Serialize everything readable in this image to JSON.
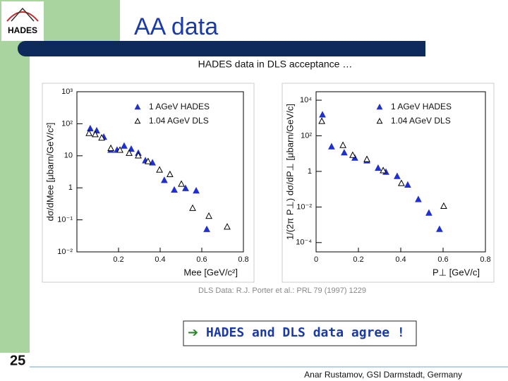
{
  "slide": {
    "logo": "HADES",
    "title": "AA data",
    "subtitle": "HADES data in DLS acceptance …",
    "caption": "DLS Data: R.J. Porter et al.: PRL 79 (1997) 1229",
    "conclusion": "HADES and DLS data agree !",
    "page_number": "25",
    "footer": "Anar Rustamov, GSI Darmstadt, Germany"
  },
  "chart_data": [
    {
      "type": "scatter",
      "x_label": "Mee [GeV/c²]",
      "y_label": "dσ/dMee [μbarn/GeV/c²]",
      "log_y": true,
      "legend": "upper right",
      "xlim": [
        0,
        0.8
      ],
      "xticks": [
        0.2,
        0.4,
        0.6,
        0.8
      ],
      "ylim": [
        0.01,
        1000
      ],
      "yticks": [
        {
          "value": 1000,
          "label": "10³"
        },
        {
          "value": 100,
          "label": "10²"
        },
        10,
        1,
        {
          "value": 0.1,
          "label": "10⁻¹"
        },
        {
          "value": 0.01,
          "label": "10⁻²"
        }
      ],
      "series": [
        {
          "name": "1 AGeV HADES",
          "color": "#2030d0",
          "filled": true,
          "x": [
            0.064,
            0.095,
            0.129,
            0.163,
            0.193,
            0.227,
            0.261,
            0.295,
            0.329,
            0.363,
            0.42,
            0.468,
            0.522,
            0.573,
            0.624
          ],
          "values": [
            70,
            60,
            38,
            15,
            15,
            20,
            16,
            12,
            7,
            6,
            1.7,
            0.85,
            0.95,
            0.8,
            0.05
          ]
        },
        {
          "name": "1.04 AGeV DLS",
          "color": "#000000",
          "filled": false,
          "x": [
            0.058,
            0.088,
            0.119,
            0.163,
            0.207,
            0.251,
            0.295,
            0.342,
            0.397,
            0.447,
            0.502,
            0.556,
            0.634,
            0.722
          ],
          "values": [
            50,
            46,
            36,
            17,
            15,
            12,
            10,
            6.6,
            3.6,
            2.6,
            1.3,
            0.23,
            0.13,
            0.06
          ]
        }
      ]
    },
    {
      "type": "scatter",
      "x_label": "P⊥ [GeV/c]",
      "y_label": "1/(2π P⊥) dσ/dP⊥ [μbarn/GeV/c]",
      "log_y": true,
      "legend": "upper right",
      "xlim": [
        0,
        0.8
      ],
      "xticks": [
        0,
        0.2,
        0.4,
        0.6,
        0.8
      ],
      "ylim": [
        3e-05,
        30000
      ],
      "yticks": [
        {
          "value": 10000,
          "label": "10⁴"
        },
        {
          "value": 100,
          "label": "10²"
        },
        1,
        {
          "value": 0.01,
          "label": "10⁻²"
        },
        {
          "value": 0.0001,
          "label": "10⁻⁴"
        }
      ],
      "series": [
        {
          "name": "1 AGeV HADES",
          "color": "#2030d0",
          "filled": true,
          "x": [
            0.03,
            0.073,
            0.133,
            0.183,
            0.24,
            0.293,
            0.33,
            0.383,
            0.433,
            0.483,
            0.533,
            0.583
          ],
          "values": [
            1500,
            24,
            11,
            5.6,
            3.9,
            1.5,
            0.9,
            0.52,
            0.17,
            0.026,
            0.0045,
            0.00055
          ]
        },
        {
          "name": "1.04 AGeV DLS",
          "color": "#000000",
          "filled": false,
          "x": [
            0.027,
            0.127,
            0.173,
            0.24,
            0.317,
            0.403,
            0.603
          ],
          "values": [
            650,
            29,
            8,
            4.7,
            1.1,
            0.21,
            0.011
          ]
        }
      ]
    }
  ]
}
